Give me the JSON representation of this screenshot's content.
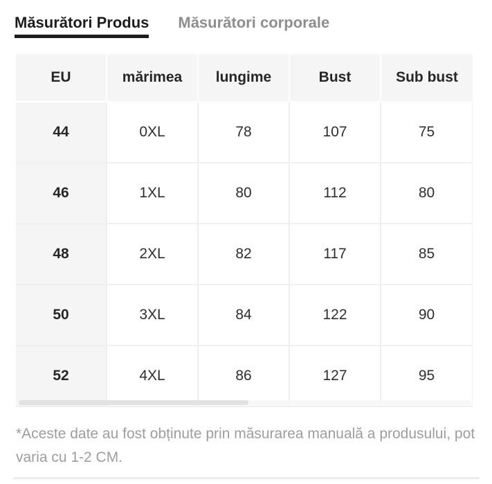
{
  "tabs": {
    "product": {
      "label": "Măsurători Produs"
    },
    "body": {
      "label": "Măsurători corporale"
    }
  },
  "table": {
    "headers": [
      "EU",
      "mărimea",
      "lungime",
      "Bust",
      "Sub bust"
    ],
    "rows": [
      [
        "44",
        "0XL",
        "78",
        "107",
        "75"
      ],
      [
        "46",
        "1XL",
        "80",
        "112",
        "80"
      ],
      [
        "48",
        "2XL",
        "82",
        "117",
        "85"
      ],
      [
        "50",
        "3XL",
        "84",
        "122",
        "90"
      ],
      [
        "52",
        "4XL",
        "86",
        "127",
        "95"
      ]
    ]
  },
  "footnote": "*Aceste date au fost obținute prin măsurarea manuală a produsului, pot varia cu 1-2 CM.",
  "colors": {
    "accent": "#1d1d1d",
    "tab-inactive": "#8e8e8e",
    "table-stripe": "#f5f5f5",
    "divider": "#ededed",
    "note": "#9d9d9d"
  }
}
